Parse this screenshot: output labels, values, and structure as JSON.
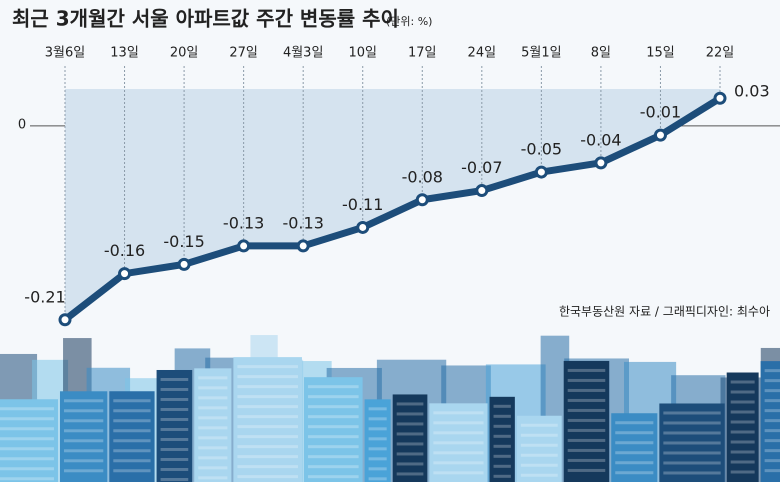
{
  "chart_data": {
    "type": "line",
    "title": "최근 3개월간 서울 아파트값 주간 변동률 추이",
    "subtitle": "(단위: %)",
    "categories": [
      "3월6일",
      "13일",
      "20일",
      "27일",
      "4월3일",
      "10일",
      "17일",
      "24일",
      "5월1일",
      "8일",
      "15일",
      "22일"
    ],
    "values": [
      -0.21,
      -0.16,
      -0.15,
      -0.13,
      -0.13,
      -0.11,
      -0.08,
      -0.07,
      -0.05,
      -0.04,
      -0.01,
      0.03
    ],
    "color": "#1d4d7a",
    "area_color": "#d5e3ef",
    "ylim": [
      -0.22,
      0.04
    ],
    "yticks": [
      0
    ],
    "grid": true,
    "source": "한국부동산원 자료 / 그래픽디자인: 최수아"
  }
}
